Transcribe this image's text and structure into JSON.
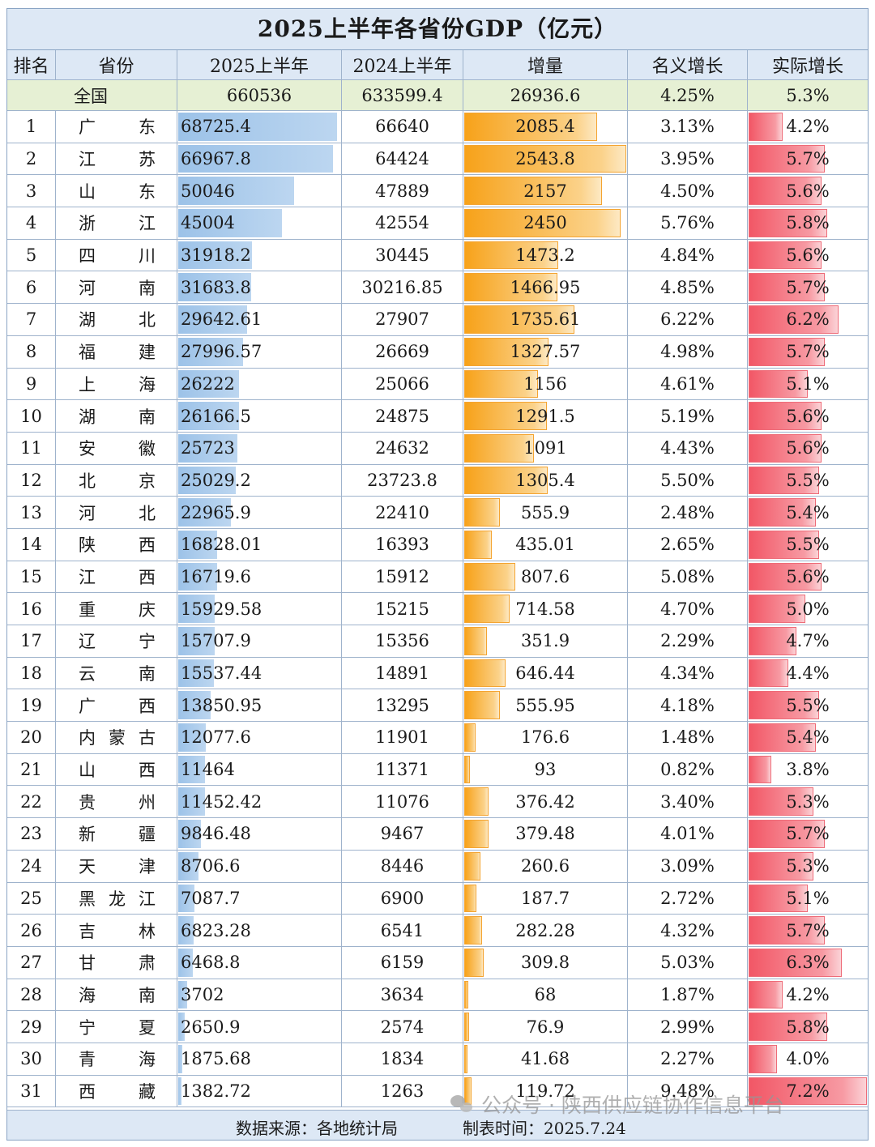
{
  "chart_data": {
    "type": "table",
    "title": "2025上半年各省份GDP（亿元）",
    "columns": [
      "排名",
      "省份",
      "2025上半年",
      "2024上半年",
      "增量",
      "名义增长",
      "实际增长"
    ],
    "national": {
      "label": "全国",
      "gdp2025": "660536",
      "gdp2024": "633599.4",
      "increase": "26936.6",
      "nominal": "4.25%",
      "real": "5.3%"
    },
    "rows": [
      {
        "rank": "1",
        "chars": [
          "广",
          "东"
        ],
        "gdp2025": "68725.4",
        "gdp2024": "66640",
        "increase": "2085.4",
        "nominal": "3.13%",
        "real": "4.2%"
      },
      {
        "rank": "2",
        "chars": [
          "江",
          "苏"
        ],
        "gdp2025": "66967.8",
        "gdp2024": "64424",
        "increase": "2543.8",
        "nominal": "3.95%",
        "real": "5.7%"
      },
      {
        "rank": "3",
        "chars": [
          "山",
          "东"
        ],
        "gdp2025": "50046",
        "gdp2024": "47889",
        "increase": "2157",
        "nominal": "4.50%",
        "real": "5.6%"
      },
      {
        "rank": "4",
        "chars": [
          "浙",
          "江"
        ],
        "gdp2025": "45004",
        "gdp2024": "42554",
        "increase": "2450",
        "nominal": "5.76%",
        "real": "5.8%"
      },
      {
        "rank": "5",
        "chars": [
          "四",
          "川"
        ],
        "gdp2025": "31918.2",
        "gdp2024": "30445",
        "increase": "1473.2",
        "nominal": "4.84%",
        "real": "5.6%"
      },
      {
        "rank": "6",
        "chars": [
          "河",
          "南"
        ],
        "gdp2025": "31683.8",
        "gdp2024": "30216.85",
        "increase": "1466.95",
        "nominal": "4.85%",
        "real": "5.7%"
      },
      {
        "rank": "7",
        "chars": [
          "湖",
          "北"
        ],
        "gdp2025": "29642.61",
        "gdp2024": "27907",
        "increase": "1735.61",
        "nominal": "6.22%",
        "real": "6.2%"
      },
      {
        "rank": "8",
        "chars": [
          "福",
          "建"
        ],
        "gdp2025": "27996.57",
        "gdp2024": "26669",
        "increase": "1327.57",
        "nominal": "4.98%",
        "real": "5.7%"
      },
      {
        "rank": "9",
        "chars": [
          "上",
          "海"
        ],
        "gdp2025": "26222",
        "gdp2024": "25066",
        "increase": "1156",
        "nominal": "4.61%",
        "real": "5.1%"
      },
      {
        "rank": "10",
        "chars": [
          "湖",
          "南"
        ],
        "gdp2025": "26166.5",
        "gdp2024": "24875",
        "increase": "1291.5",
        "nominal": "5.19%",
        "real": "5.6%"
      },
      {
        "rank": "11",
        "chars": [
          "安",
          "徽"
        ],
        "gdp2025": "25723",
        "gdp2024": "24632",
        "increase": "1091",
        "nominal": "4.43%",
        "real": "5.6%"
      },
      {
        "rank": "12",
        "chars": [
          "北",
          "京"
        ],
        "gdp2025": "25029.2",
        "gdp2024": "23723.8",
        "increase": "1305.4",
        "nominal": "5.50%",
        "real": "5.5%"
      },
      {
        "rank": "13",
        "chars": [
          "河",
          "北"
        ],
        "gdp2025": "22965.9",
        "gdp2024": "22410",
        "increase": "555.9",
        "nominal": "2.48%",
        "real": "5.4%"
      },
      {
        "rank": "14",
        "chars": [
          "陕",
          "西"
        ],
        "gdp2025": "16828.01",
        "gdp2024": "16393",
        "increase": "435.01",
        "nominal": "2.65%",
        "real": "5.5%"
      },
      {
        "rank": "15",
        "chars": [
          "江",
          "西"
        ],
        "gdp2025": "16719.6",
        "gdp2024": "15912",
        "increase": "807.6",
        "nominal": "5.08%",
        "real": "5.6%"
      },
      {
        "rank": "16",
        "chars": [
          "重",
          "庆"
        ],
        "gdp2025": "15929.58",
        "gdp2024": "15215",
        "increase": "714.58",
        "nominal": "4.70%",
        "real": "5.0%"
      },
      {
        "rank": "17",
        "chars": [
          "辽",
          "宁"
        ],
        "gdp2025": "15707.9",
        "gdp2024": "15356",
        "increase": "351.9",
        "nominal": "2.29%",
        "real": "4.7%"
      },
      {
        "rank": "18",
        "chars": [
          "云",
          "南"
        ],
        "gdp2025": "15537.44",
        "gdp2024": "14891",
        "increase": "646.44",
        "nominal": "4.34%",
        "real": "4.4%"
      },
      {
        "rank": "19",
        "chars": [
          "广",
          "西"
        ],
        "gdp2025": "13850.95",
        "gdp2024": "13295",
        "increase": "555.95",
        "nominal": "4.18%",
        "real": "5.5%"
      },
      {
        "rank": "20",
        "chars": [
          "内",
          "蒙",
          "古"
        ],
        "gdp2025": "12077.6",
        "gdp2024": "11901",
        "increase": "176.6",
        "nominal": "1.48%",
        "real": "5.4%"
      },
      {
        "rank": "21",
        "chars": [
          "山",
          "西"
        ],
        "gdp2025": "11464",
        "gdp2024": "11371",
        "increase": "93",
        "nominal": "0.82%",
        "real": "3.8%"
      },
      {
        "rank": "22",
        "chars": [
          "贵",
          "州"
        ],
        "gdp2025": "11452.42",
        "gdp2024": "11076",
        "increase": "376.42",
        "nominal": "3.40%",
        "real": "5.3%"
      },
      {
        "rank": "23",
        "chars": [
          "新",
          "疆"
        ],
        "gdp2025": "9846.48",
        "gdp2024": "9467",
        "increase": "379.48",
        "nominal": "4.01%",
        "real": "5.7%"
      },
      {
        "rank": "24",
        "chars": [
          "天",
          "津"
        ],
        "gdp2025": "8706.6",
        "gdp2024": "8446",
        "increase": "260.6",
        "nominal": "3.09%",
        "real": "5.3%"
      },
      {
        "rank": "25",
        "chars": [
          "黑",
          "龙",
          "江"
        ],
        "gdp2025": "7087.7",
        "gdp2024": "6900",
        "increase": "187.7",
        "nominal": "2.72%",
        "real": "5.1%"
      },
      {
        "rank": "26",
        "chars": [
          "吉",
          "林"
        ],
        "gdp2025": "6823.28",
        "gdp2024": "6541",
        "increase": "282.28",
        "nominal": "4.32%",
        "real": "5.7%"
      },
      {
        "rank": "27",
        "chars": [
          "甘",
          "肃"
        ],
        "gdp2025": "6468.8",
        "gdp2024": "6159",
        "increase": "309.8",
        "nominal": "5.03%",
        "real": "6.3%"
      },
      {
        "rank": "28",
        "chars": [
          "海",
          "南"
        ],
        "gdp2025": "3702",
        "gdp2024": "3634",
        "increase": "68",
        "nominal": "1.87%",
        "real": "4.2%"
      },
      {
        "rank": "29",
        "chars": [
          "宁",
          "夏"
        ],
        "gdp2025": "2650.9",
        "gdp2024": "2574",
        "increase": "76.9",
        "nominal": "2.99%",
        "real": "5.8%"
      },
      {
        "rank": "30",
        "chars": [
          "青",
          "海"
        ],
        "gdp2025": "1875.68",
        "gdp2024": "1834",
        "increase": "41.68",
        "nominal": "2.27%",
        "real": "4.0%"
      },
      {
        "rank": "31",
        "chars": [
          "西",
          "藏"
        ],
        "gdp2025": "1382.72",
        "gdp2024": "1263",
        "increase": "119.72",
        "nominal": "9.48%",
        "real": "7.2%"
      }
    ]
  },
  "footer": {
    "source": "数据来源：各地统计局",
    "made": "制表时间：2025.7.24"
  },
  "watermark": {
    "text": "公众号 · 陕西供应链协作信息平台",
    "icon": "wechat-icon"
  },
  "colors": {
    "header_bg": "#dde8f5",
    "national_bg": "#e6f0d4",
    "gdp_bar": "#9cc2e8",
    "increase_bar": "#f7a21a",
    "real_growth_bar": "#f25766"
  }
}
